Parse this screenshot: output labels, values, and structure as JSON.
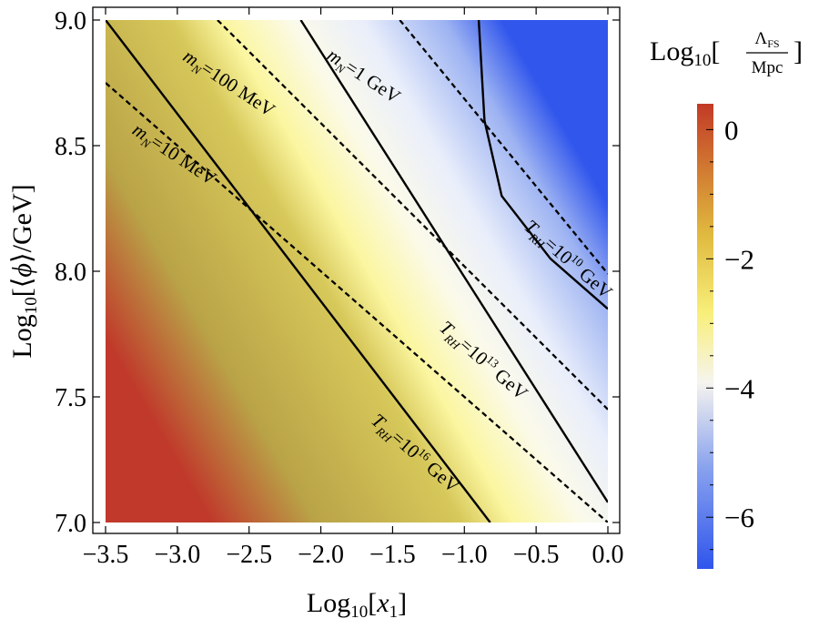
{
  "chart_data": {
    "type": "heatmap",
    "title": "",
    "xlabel": "Log10[x1]",
    "ylabel": "Log10[⟨ϕ⟩/GeV]",
    "xlim": [
      -3.5,
      0.0
    ],
    "ylim": [
      7.0,
      9.0
    ],
    "x_ticks": [
      -3.5,
      -3.0,
      -2.5,
      -2.0,
      -1.5,
      -1.0,
      -0.5,
      0.0
    ],
    "x_tick_labels": [
      "−3.5",
      "−3.0",
      "−2.5",
      "−2.0",
      "−1.5",
      "−1.0",
      "−0.5",
      "0.0"
    ],
    "y_ticks": [
      7.0,
      7.5,
      8.0,
      8.5,
      9.0
    ],
    "y_tick_labels": [
      "7.0",
      "7.5",
      "8.0",
      "8.5",
      "9.0"
    ],
    "grid": false,
    "colorbar": {
      "label": "Log10[ΛFS / Mpc ]",
      "range": [
        -6.8,
        0.4
      ],
      "ticks": [
        0,
        -2,
        -4,
        -6
      ],
      "tick_labels": [
        "0",
        "−2",
        "−4",
        "−6"
      ],
      "colors": [
        "#c0392b",
        "#c9a13a",
        "#f6ec6a",
        "#fbfbf0",
        "#bfcdf4",
        "#3c5ee8"
      ]
    },
    "solid_contours": [
      {
        "label": "T_RH=10^16 GeV",
        "points": [
          [
            -3.5,
            9.0
          ],
          [
            -0.82,
            7.0
          ]
        ]
      },
      {
        "label": "T_RH=10^13 GeV",
        "points": [
          [
            -2.14,
            9.0
          ],
          [
            0.0,
            7.08
          ]
        ]
      },
      {
        "label": "T_RH=10^10 GeV",
        "points": [
          [
            -0.9,
            9.0
          ],
          [
            -0.86,
            8.6
          ],
          [
            -0.74,
            8.3
          ],
          [
            -0.4,
            8.05
          ],
          [
            0.0,
            7.85
          ]
        ]
      }
    ],
    "dashed_contours": [
      {
        "label": "m_N=10 MeV",
        "points": [
          [
            -3.5,
            8.75
          ],
          [
            0.0,
            7.0
          ]
        ]
      },
      {
        "label": "m_N=100 MeV",
        "points": [
          [
            -2.72,
            9.0
          ],
          [
            0.0,
            7.45
          ]
        ]
      },
      {
        "label": "m_N=1 GeV",
        "points": [
          [
            -1.45,
            9.0
          ],
          [
            0.0,
            7.99
          ]
        ]
      }
    ],
    "annotations": [
      {
        "main": "m",
        "sub": "N",
        "rest": "=10 MeV"
      },
      {
        "main": "m",
        "sub": "N",
        "rest": "=100 MeV"
      },
      {
        "main": "m",
        "sub": "N",
        "rest": "=1 GeV"
      },
      {
        "main": "T",
        "sub": "RH",
        "rest": "=10",
        "exp": "16",
        "tail": " GeV"
      },
      {
        "main": "T",
        "sub": "RH",
        "rest": "=10",
        "exp": "13",
        "tail": " GeV"
      },
      {
        "main": "T",
        "sub": "RH",
        "rest": "=10",
        "exp": "10",
        "tail": " GeV"
      }
    ]
  }
}
